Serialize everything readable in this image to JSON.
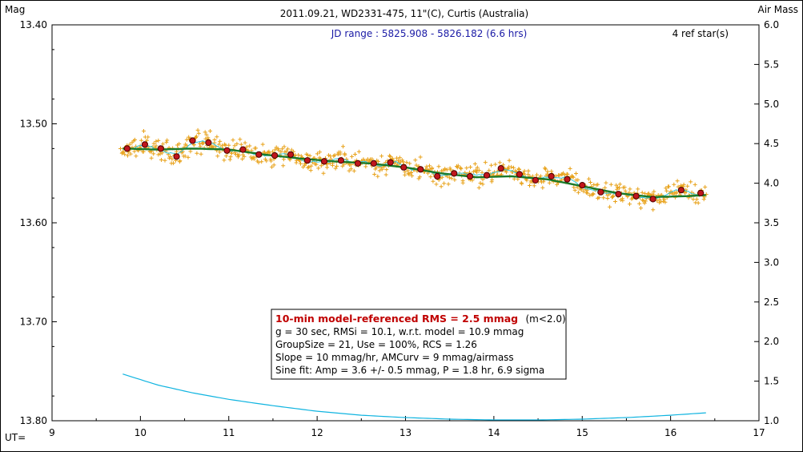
{
  "chart_data": {
    "type": "scatter",
    "title": "2011.09.21, WD2331-475, 11\"(C), Curtis (Australia)",
    "jd_range": "JD range : 5825.908 - 5826.182 (6.6 hrs)",
    "ref_stars": "4 ref star(s)",
    "y_left_label": "Mag",
    "y_right_label": "Air Mass",
    "x_label": "UT=",
    "xlim": [
      9,
      17
    ],
    "ylim_left": [
      13.4,
      13.8
    ],
    "ylim_left_inverted": true,
    "ylim_right": [
      1.0,
      6.0
    ],
    "x_ticks": [
      "9",
      "10",
      "11",
      "12",
      "13",
      "14",
      "15",
      "16",
      "17"
    ],
    "y_left_ticks": [
      "13.40",
      "13.50",
      "13.60",
      "13.70",
      "13.80"
    ],
    "y_right_ticks": [
      "6.0",
      "5.5",
      "5.0",
      "4.5",
      "4.0",
      "3.5",
      "3.0",
      "2.5",
      "2.0",
      "1.5",
      "1.0"
    ],
    "grid": false,
    "stats_box": {
      "title": "10-min model-referenced RMS = 2.5 mmag",
      "title_note": "(m<2.0)",
      "lines": [
        "g = 30 sec, RMSi = 10.1, w.r.t. model = 10.9 mmag",
        "GroupSize = 21, Use = 100%, RCS = 1.26",
        "Slope = 10 mmag/hr, AMCurv = 9 mmag/airmass",
        "Sine fit: Amp = 3.6 +/- 0.5 mmag, P = 1.8 hr, 6.9 sigma"
      ]
    },
    "colors": {
      "raw_points": "#e8a21a",
      "binned_points_fill": "#c0161c",
      "binned_points_edge": "#4a0000",
      "model_line": "#1a7a2a",
      "running_mean": "#30c8e0",
      "airmass": "#10b4e0"
    },
    "series": [
      {
        "kind": "binned",
        "x": [
          9.85,
          10.05,
          10.23,
          10.41,
          10.59,
          10.77,
          10.98,
          11.16,
          11.34,
          11.52,
          11.7,
          11.89,
          12.08,
          12.27,
          12.46,
          12.64,
          12.83,
          12.98,
          13.17,
          13.36,
          13.55,
          13.73,
          13.92,
          14.08,
          14.29,
          14.47,
          14.65,
          14.83,
          15.0,
          15.21,
          15.41,
          15.61,
          15.8,
          16.12,
          16.34
        ],
        "y": [
          13.525,
          13.521,
          13.525,
          13.533,
          13.517,
          13.519,
          13.527,
          13.526,
          13.531,
          13.532,
          13.531,
          13.537,
          13.538,
          13.537,
          13.54,
          13.54,
          13.539,
          13.544,
          13.546,
          13.553,
          13.55,
          13.553,
          13.552,
          13.545,
          13.551,
          13.557,
          13.553,
          13.556,
          13.562,
          13.569,
          13.571,
          13.573,
          13.576,
          13.567,
          13.57
        ]
      },
      {
        "kind": "model",
        "x": [
          9.8,
          10.2,
          10.6,
          11.0,
          11.4,
          11.8,
          12.2,
          12.6,
          13.0,
          13.4,
          13.8,
          14.2,
          14.6,
          15.0,
          15.4,
          15.8,
          16.2,
          16.4
        ],
        "y": [
          13.525,
          13.526,
          13.525,
          13.526,
          13.531,
          13.535,
          13.538,
          13.54,
          13.544,
          13.55,
          13.554,
          13.553,
          13.556,
          13.563,
          13.57,
          13.574,
          13.573,
          13.572
        ]
      },
      {
        "kind": "airmass",
        "x": [
          9.8,
          10.2,
          10.6,
          11.0,
          11.5,
          12.0,
          12.5,
          13.0,
          13.5,
          14.0,
          14.5,
          15.0,
          15.5,
          16.0,
          16.4
        ],
        "y": [
          1.59,
          1.45,
          1.35,
          1.27,
          1.19,
          1.12,
          1.07,
          1.04,
          1.02,
          1.01,
          1.01,
          1.02,
          1.04,
          1.07,
          1.1
        ]
      }
    ]
  }
}
